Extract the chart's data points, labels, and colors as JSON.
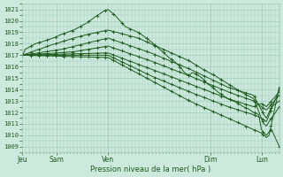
{
  "xlabel": "Pression niveau de la mer( hPa )",
  "ylim": [
    1008.5,
    1021.5
  ],
  "yticks": [
    1009,
    1010,
    1011,
    1012,
    1013,
    1014,
    1015,
    1016,
    1017,
    1018,
    1019,
    1020,
    1021
  ],
  "day_labels": [
    "Jeu",
    "Sam",
    "Ven",
    "Dim",
    "Lun"
  ],
  "day_positions": [
    0,
    0.133,
    0.333,
    0.733,
    0.933
  ],
  "bg_color": "#cde8dc",
  "grid_color": "#9ecfbe",
  "line_color": "#1e5c1e",
  "xlim": [
    0.0,
    1.0
  ],
  "lines": [
    {
      "points": [
        [
          0.0,
          1017.0
        ],
        [
          0.005,
          1017.2
        ],
        [
          0.01,
          1017.5
        ],
        [
          0.05,
          1018.0
        ],
        [
          0.08,
          1018.2
        ],
        [
          0.12,
          1018.5
        ],
        [
          0.15,
          1018.8
        ],
        [
          0.2,
          1019.2
        ],
        [
          0.25,
          1019.8
        ],
        [
          0.28,
          1020.3
        ],
        [
          0.3,
          1020.6
        ],
        [
          0.32,
          1020.9
        ],
        [
          0.333,
          1021.0
        ],
        [
          0.36,
          1020.5
        ],
        [
          0.38,
          1020.0
        ],
        [
          0.4,
          1019.5
        ],
        [
          0.43,
          1019.2
        ],
        [
          0.45,
          1019.0
        ],
        [
          0.47,
          1018.7
        ],
        [
          0.5,
          1018.2
        ],
        [
          0.52,
          1017.8
        ],
        [
          0.55,
          1017.2
        ],
        [
          0.57,
          1016.8
        ],
        [
          0.6,
          1016.3
        ],
        [
          0.62,
          1015.8
        ],
        [
          0.63,
          1015.5
        ],
        [
          0.65,
          1015.2
        ],
        [
          0.66,
          1015.5
        ],
        [
          0.68,
          1015.3
        ],
        [
          0.7,
          1015.0
        ],
        [
          0.72,
          1014.5
        ],
        [
          0.74,
          1014.2
        ],
        [
          0.76,
          1013.8
        ],
        [
          0.78,
          1013.5
        ],
        [
          0.8,
          1013.2
        ],
        [
          0.82,
          1013.0
        ],
        [
          0.84,
          1012.8
        ],
        [
          0.86,
          1012.5
        ],
        [
          0.88,
          1012.3
        ],
        [
          0.9,
          1012.0
        ],
        [
          0.92,
          1011.8
        ],
        [
          0.93,
          1010.5
        ],
        [
          0.94,
          1010.2
        ],
        [
          0.95,
          1010.0
        ],
        [
          0.96,
          1010.3
        ],
        [
          0.97,
          1010.5
        ],
        [
          1.0,
          1009.0
        ]
      ]
    },
    {
      "points": [
        [
          0.0,
          1017.0
        ],
        [
          0.1,
          1017.8
        ],
        [
          0.2,
          1018.5
        ],
        [
          0.25,
          1018.8
        ],
        [
          0.333,
          1019.2
        ],
        [
          0.45,
          1018.5
        ],
        [
          0.55,
          1017.5
        ],
        [
          0.65,
          1016.5
        ],
        [
          0.7,
          1015.8
        ],
        [
          0.75,
          1015.2
        ],
        [
          0.8,
          1014.5
        ],
        [
          0.85,
          1013.8
        ],
        [
          0.9,
          1013.2
        ],
        [
          0.93,
          1011.5
        ],
        [
          0.94,
          1011.0
        ],
        [
          0.95,
          1010.8
        ],
        [
          0.96,
          1011.2
        ],
        [
          0.97,
          1011.5
        ],
        [
          1.0,
          1012.5
        ]
      ]
    },
    {
      "points": [
        [
          0.0,
          1017.0
        ],
        [
          0.15,
          1017.5
        ],
        [
          0.333,
          1018.5
        ],
        [
          0.5,
          1017.2
        ],
        [
          0.65,
          1015.8
        ],
        [
          0.8,
          1014.2
        ],
        [
          0.9,
          1013.5
        ],
        [
          0.93,
          1012.2
        ],
        [
          0.94,
          1011.8
        ],
        [
          0.95,
          1011.5
        ],
        [
          0.96,
          1012.0
        ],
        [
          0.97,
          1012.5
        ],
        [
          1.0,
          1013.0
        ]
      ]
    },
    {
      "points": [
        [
          0.0,
          1017.0
        ],
        [
          0.2,
          1017.3
        ],
        [
          0.333,
          1017.8
        ],
        [
          0.5,
          1016.5
        ],
        [
          0.65,
          1015.2
        ],
        [
          0.8,
          1013.8
        ],
        [
          0.9,
          1013.0
        ],
        [
          0.93,
          1012.5
        ],
        [
          0.95,
          1012.2
        ],
        [
          1.0,
          1013.5
        ]
      ]
    },
    {
      "points": [
        [
          0.0,
          1017.0
        ],
        [
          0.333,
          1017.2
        ],
        [
          0.5,
          1015.8
        ],
        [
          0.65,
          1014.5
        ],
        [
          0.8,
          1013.2
        ],
        [
          0.9,
          1012.5
        ],
        [
          0.93,
          1012.8
        ],
        [
          0.95,
          1012.5
        ],
        [
          1.0,
          1013.8
        ]
      ]
    },
    {
      "points": [
        [
          0.0,
          1017.0
        ],
        [
          0.333,
          1017.0
        ],
        [
          0.5,
          1015.2
        ],
        [
          0.65,
          1013.8
        ],
        [
          0.8,
          1012.5
        ],
        [
          0.9,
          1011.8
        ],
        [
          0.93,
          1011.5
        ],
        [
          0.95,
          1011.2
        ],
        [
          1.0,
          1014.0
        ]
      ]
    },
    {
      "points": [
        [
          0.0,
          1017.0
        ],
        [
          0.333,
          1016.8
        ],
        [
          0.5,
          1014.8
        ],
        [
          0.65,
          1013.0
        ],
        [
          0.8,
          1011.5
        ],
        [
          0.9,
          1010.5
        ],
        [
          0.93,
          1010.2
        ],
        [
          0.95,
          1009.8
        ],
        [
          0.96,
          1010.0
        ],
        [
          1.0,
          1014.2
        ]
      ]
    }
  ]
}
